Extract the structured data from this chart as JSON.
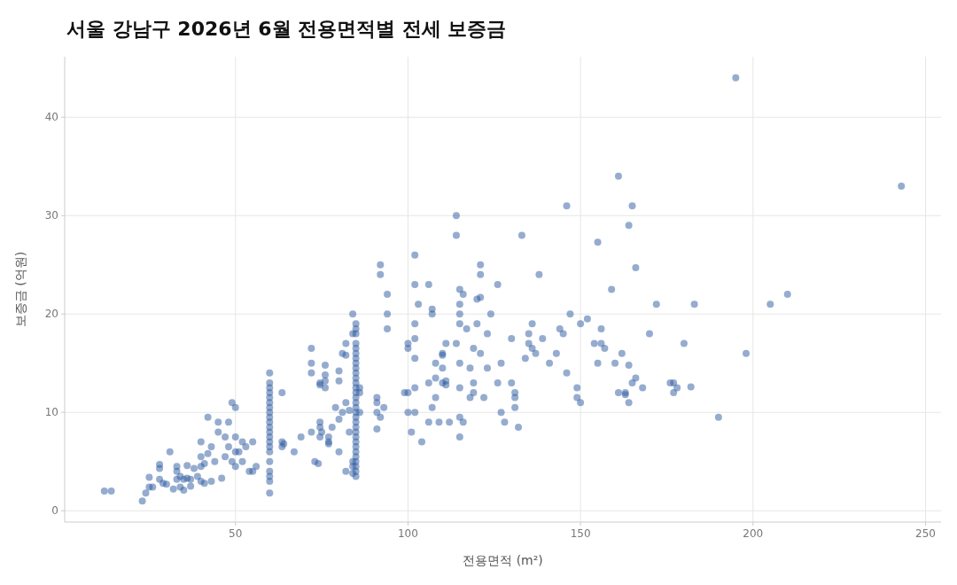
{
  "chart_data": {
    "type": "scatter",
    "title": "서울 강남구 2026년 6월 전용면적별 전세 보증금",
    "xlabel": "전용면적 (m²)",
    "ylabel": "보증금 (억원)",
    "color": "#2c5aa0",
    "marker": "circle",
    "grid": true,
    "xlim": [
      0.5,
      254.5
    ],
    "ylim": [
      -1.15,
      46.15
    ],
    "xticks": [
      50,
      100,
      150,
      200,
      250
    ],
    "yticks": [
      0,
      10,
      20,
      30,
      40
    ],
    "x": [
      12,
      14,
      23,
      24,
      25,
      25,
      26,
      28,
      28,
      28,
      29,
      30,
      31,
      32,
      33,
      33,
      33,
      34,
      34,
      35,
      35,
      36,
      36,
      37,
      37,
      38,
      39,
      40,
      40,
      40,
      40,
      41,
      41,
      42,
      42,
      43,
      43,
      44,
      45,
      45,
      46,
      47,
      47,
      48,
      48,
      49,
      49,
      50,
      50,
      50,
      50,
      51,
      52,
      52,
      53,
      54,
      55,
      55,
      56,
      59.9,
      59.9,
      59.9,
      59.9,
      59.9,
      59.9,
      59.9,
      59.9,
      59.9,
      59.9,
      59.9,
      59.9,
      59.9,
      59.9,
      59.9,
      59.9,
      59.9,
      59.9,
      59.9,
      59.9,
      59.9,
      63.5,
      63.5,
      63.5,
      64,
      67,
      69,
      72,
      72,
      72,
      72,
      73,
      74,
      74.5,
      74.5,
      74.5,
      74.5,
      74.5,
      75,
      76,
      76,
      76,
      76,
      77,
      77,
      77,
      78,
      79,
      80,
      80,
      80,
      80,
      81,
      81,
      82,
      82,
      82,
      82,
      83,
      83,
      84,
      84,
      84,
      84,
      84,
      84.9,
      84.9,
      84.9,
      84.9,
      84.9,
      84.9,
      84.9,
      84.9,
      84.9,
      84.9,
      84.9,
      84.9,
      84.9,
      84.9,
      84.9,
      84.9,
      84.9,
      84.9,
      84.9,
      84.9,
      84.9,
      84.9,
      84.9,
      84.9,
      84.9,
      84.9,
      84.9,
      84.9,
      84.9,
      84.9,
      84.9,
      86,
      86,
      86,
      92,
      92,
      91,
      91,
      91,
      91,
      92,
      94,
      94,
      94,
      93,
      99,
      100,
      100,
      100,
      101,
      100,
      102,
      102,
      102,
      102,
      102,
      102,
      102,
      103,
      104,
      106,
      106,
      106,
      107,
      107,
      107,
      108,
      108,
      108,
      109,
      110,
      110,
      110,
      110,
      111,
      111,
      111,
      112,
      114,
      114,
      114,
      115,
      115,
      115,
      115,
      115,
      115,
      115,
      115,
      116,
      116,
      117,
      118,
      118,
      119,
      119,
      119,
      120,
      120,
      121,
      121,
      121,
      121,
      122,
      123,
      123,
      124,
      126,
      126,
      127,
      127,
      128,
      130,
      130,
      131,
      131,
      131,
      132,
      133,
      134,
      135,
      135,
      136,
      136,
      137,
      138,
      139,
      141,
      143,
      144,
      145,
      146,
      146,
      147,
      149,
      149,
      150,
      150,
      152,
      154,
      155,
      155,
      156,
      156,
      157,
      159,
      160,
      161,
      161,
      162,
      163,
      163,
      164,
      164,
      164,
      165,
      165,
      166,
      166,
      168,
      170,
      172,
      176,
      177,
      177,
      178,
      180,
      182,
      183,
      190,
      195,
      198,
      205,
      210,
      243
    ],
    "values": [
      2,
      2,
      1,
      1.8,
      2.4,
      3.4,
      2.4,
      3.2,
      4.3,
      4.7,
      2.8,
      2.7,
      6,
      2.2,
      3.2,
      4,
      4.5,
      3.5,
      2.4,
      2.1,
      3.2,
      4.6,
      3.3,
      2.5,
      3.2,
      4.3,
      3.5,
      4.5,
      5.5,
      7,
      3,
      2.8,
      4.8,
      5.8,
      9.5,
      6.5,
      3,
      5,
      8,
      9,
      3.3,
      5.5,
      7.5,
      9,
      6.5,
      11,
      5,
      4.5,
      6,
      7.5,
      10.5,
      6,
      5,
      7,
      6.5,
      4,
      7,
      4,
      4.5,
      1.8,
      3,
      3.5,
      4,
      5,
      6,
      6.5,
      7,
      7.5,
      8,
      8.5,
      9,
      9.5,
      10,
      10.5,
      11,
      11.5,
      12,
      12.5,
      13,
      14,
      7,
      6.5,
      12,
      6.8,
      6,
      7.5,
      16.5,
      15,
      14,
      8,
      5,
      4.8,
      12.8,
      13,
      9,
      8.5,
      7.5,
      8,
      14.8,
      13.2,
      13.8,
      12.5,
      7,
      7.5,
      6.8,
      8.5,
      10.5,
      6,
      9.3,
      13.2,
      14.2,
      10,
      16,
      17,
      15.8,
      11,
      4,
      10.2,
      8,
      18,
      20,
      5,
      3.8,
      4.5,
      3.5,
      4,
      4.5,
      5,
      5.5,
      6,
      6.5,
      7,
      7.5,
      8,
      8.5,
      9,
      9.5,
      10,
      10.5,
      11,
      11.5,
      12,
      12.5,
      13,
      13.5,
      14,
      14.5,
      15,
      15.5,
      16,
      16.5,
      17,
      18,
      18.5,
      19,
      12.5,
      12,
      10,
      25,
      24,
      11.5,
      10,
      11,
      8.3,
      9.5,
      22,
      20,
      18.5,
      10.5,
      12,
      17,
      16.5,
      12,
      8,
      10,
      26,
      23,
      19,
      17.5,
      15.5,
      12.5,
      10,
      21,
      7,
      23,
      13,
      9,
      20.5,
      20,
      10.5,
      15,
      13.5,
      11.5,
      9,
      16,
      15.8,
      14.5,
      13,
      12.8,
      17,
      13.2,
      9,
      30,
      28,
      17,
      22.5,
      21,
      20,
      19,
      15,
      12.5,
      9.5,
      7.5,
      22,
      9,
      18.5,
      14.5,
      11.5,
      16.5,
      13,
      12,
      21.5,
      19,
      21.7,
      25,
      24,
      16,
      11.5,
      18,
      14.5,
      20,
      23,
      13,
      15,
      10,
      9,
      17.5,
      13,
      12,
      11.5,
      10.5,
      8.5,
      28,
      15.5,
      18,
      17,
      16.5,
      19,
      16,
      24,
      17.5,
      15,
      16,
      18.5,
      18,
      14,
      31,
      20,
      12.5,
      11.5,
      11,
      19,
      19.5,
      17,
      27.3,
      15,
      18.5,
      17,
      16.5,
      22.5,
      15,
      12,
      34,
      16,
      11.8,
      12,
      14.8,
      11,
      29,
      31,
      13,
      24.7,
      13.5,
      12.5,
      18,
      21,
      13,
      12,
      13,
      12.5,
      17,
      12.6,
      21,
      9.5,
      44,
      16,
      21,
      22,
      33
    ]
  }
}
